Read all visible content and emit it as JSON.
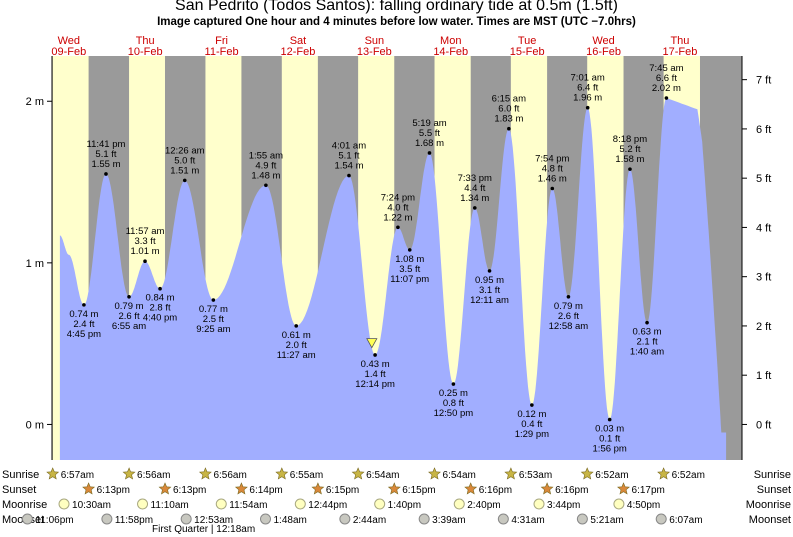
{
  "header": {
    "title": "San Pedrito (Todos Santos): falling  ordinary tide at 0.5m (1.5ft)",
    "subtitle": "Image captured One hour and 4 minutes before low water. Times are MST (UTC −7.0hrs)"
  },
  "colors": {
    "night": "#9a9a9a",
    "day": "#ffffcc",
    "water": "#a1aeff",
    "day_label": "#cc0000",
    "current_marker": "#ffff55"
  },
  "chart_data": {
    "type": "area",
    "x_unit": "hours from 09-Feb 00:00 (MST)",
    "ylim_m": [
      -0.22,
      2.28
    ],
    "yticks_m": [
      {
        "v": 0,
        "label": "0 m"
      },
      {
        "v": 1,
        "label": "1 m"
      },
      {
        "v": 2,
        "label": "2 m"
      }
    ],
    "yticks_ft": [
      {
        "v": 0,
        "label": "0 ft"
      },
      {
        "v": 1,
        "label": "1 ft"
      },
      {
        "v": 2,
        "label": "2 ft"
      },
      {
        "v": 3,
        "label": "3 ft"
      },
      {
        "v": 4,
        "label": "4 ft"
      },
      {
        "v": 5,
        "label": "5 ft"
      },
      {
        "v": 6,
        "label": "6 ft"
      },
      {
        "v": 7,
        "label": "7 ft"
      }
    ],
    "days": [
      {
        "name": "Wed",
        "date": "09-Feb"
      },
      {
        "name": "Thu",
        "date": "10-Feb"
      },
      {
        "name": "Fri",
        "date": "11-Feb"
      },
      {
        "name": "Sat",
        "date": "12-Feb"
      },
      {
        "name": "Sun",
        "date": "13-Feb"
      },
      {
        "name": "Mon",
        "date": "14-Feb"
      },
      {
        "name": "Tue",
        "date": "15-Feb"
      },
      {
        "name": "Wed",
        "date": "16-Feb"
      },
      {
        "name": "Thu",
        "date": "17-Feb"
      }
    ],
    "daylight_hours": [
      [
        6.95,
        18.22
      ],
      [
        30.93,
        42.22
      ],
      [
        54.93,
        66.23
      ],
      [
        78.92,
        90.25
      ],
      [
        102.9,
        114.25
      ],
      [
        126.9,
        138.27
      ],
      [
        150.88,
        162.27
      ],
      [
        174.87,
        186.28
      ],
      [
        198.87,
        210.3
      ]
    ],
    "tide_series_start": [
      [
        9.2,
        1.17
      ],
      [
        12.0,
        1.05
      ]
    ],
    "tide_series_end": [
      [
        209.5,
        1.95
      ],
      [
        211.0,
        1.75
      ],
      [
        213.0,
        1.2
      ],
      [
        215.5,
        0.45
      ],
      [
        217.0,
        -0.05
      ],
      [
        218.5,
        -0.05
      ]
    ],
    "extremes": [
      {
        "x": 16.75,
        "h": 0.74,
        "type": "low",
        "m": "0.74 m",
        "ft": "2.4 ft",
        "time": "4:45 pm"
      },
      {
        "x": 23.68,
        "h": 1.55,
        "type": "high",
        "m": "1.55 m",
        "ft": "5.1 ft",
        "time": "11:41 pm"
      },
      {
        "x": 30.92,
        "h": 0.79,
        "type": "low",
        "m": "0.79 m",
        "ft": "2.6 ft",
        "time": "6:55 am"
      },
      {
        "x": 35.95,
        "h": 1.01,
        "type": "high",
        "m": "1.01 m",
        "ft": "3.3 ft",
        "time": "11:57 am"
      },
      {
        "x": 40.67,
        "h": 0.84,
        "type": "low",
        "m": "0.84 m",
        "ft": "2.8 ft",
        "time": "4:40 pm"
      },
      {
        "x": 48.43,
        "h": 1.51,
        "type": "high",
        "m": "1.51 m",
        "ft": "5.0 ft",
        "time": "12:26 am"
      },
      {
        "x": 57.42,
        "h": 0.77,
        "type": "low",
        "m": "0.77 m",
        "ft": "2.5 ft",
        "time": "9:25 am"
      },
      {
        "x": 73.92,
        "h": 1.48,
        "type": "high",
        "m": "1.48 m",
        "ft": "4.9 ft",
        "time": "1:55 am"
      },
      {
        "x": 83.45,
        "h": 0.61,
        "type": "low",
        "m": "0.61 m",
        "ft": "2.0 ft",
        "time": "11:27 am"
      },
      {
        "x": 100.02,
        "h": 1.54,
        "type": "high",
        "m": "1.54 m",
        "ft": "5.1 ft",
        "time": "4:01 am"
      },
      {
        "x": 108.23,
        "h": 0.43,
        "type": "low",
        "m": "0.43 m",
        "ft": "1.4 ft",
        "time": "12:14 pm"
      },
      {
        "x": 115.4,
        "h": 1.22,
        "type": "high",
        "m": "1.22 m",
        "ft": "4.0 ft",
        "time": "7:24 pm"
      },
      {
        "x": 119.12,
        "h": 1.08,
        "type": "low",
        "m": "1.08 m",
        "ft": "3.5 ft",
        "time": "11:07 pm"
      },
      {
        "x": 125.32,
        "h": 1.68,
        "type": "high",
        "m": "1.68 m",
        "ft": "5.5 ft",
        "time": "5:19 am"
      },
      {
        "x": 132.83,
        "h": 0.25,
        "type": "low",
        "m": "0.25 m",
        "ft": "0.8 ft",
        "time": "12:50 pm"
      },
      {
        "x": 139.55,
        "h": 1.34,
        "type": "high",
        "m": "1.34 m",
        "ft": "4.4 ft",
        "time": "7:33 pm"
      },
      {
        "x": 144.18,
        "h": 0.95,
        "type": "low",
        "m": "0.95 m",
        "ft": "3.1 ft",
        "time": "12:11 am"
      },
      {
        "x": 150.25,
        "h": 1.83,
        "type": "high",
        "m": "1.83 m",
        "ft": "6.0 ft",
        "time": "6:15 am"
      },
      {
        "x": 157.48,
        "h": 0.12,
        "type": "low",
        "m": "0.12 m",
        "ft": "0.4 ft",
        "time": "1:29 pm"
      },
      {
        "x": 163.9,
        "h": 1.46,
        "type": "high",
        "m": "1.46 m",
        "ft": "4.8 ft",
        "time": "7:54 pm"
      },
      {
        "x": 168.97,
        "h": 0.79,
        "type": "low",
        "m": "0.79 m",
        "ft": "2.6 ft",
        "time": "12:58 am"
      },
      {
        "x": 175.02,
        "h": 1.96,
        "type": "high",
        "m": "1.96 m",
        "ft": "6.4 ft",
        "time": "7:01 am"
      },
      {
        "x": 181.93,
        "h": 0.03,
        "type": "low",
        "m": "0.03 m",
        "ft": "0.1 ft",
        "time": "1:56 pm"
      },
      {
        "x": 188.3,
        "h": 1.58,
        "type": "high",
        "m": "1.58 m",
        "ft": "5.2 ft",
        "time": "8:18 pm"
      },
      {
        "x": 193.67,
        "h": 0.63,
        "type": "low",
        "m": "0.63 m",
        "ft": "2.1 ft",
        "time": "1:40 am"
      },
      {
        "x": 199.75,
        "h": 2.02,
        "type": "high",
        "m": "2.02 m",
        "ft": "6.6 ft",
        "time": "7:45 am"
      }
    ],
    "current_marker": {
      "x": 107.2,
      "h": 0.5
    }
  },
  "astro": {
    "row_labels": [
      "Sunrise",
      "Sunset",
      "Moonrise",
      "Moonset"
    ],
    "sunrise": [
      {
        "x": 6.95,
        "t": "6:57am"
      },
      {
        "x": 30.93,
        "t": "6:56am"
      },
      {
        "x": 54.93,
        "t": "6:56am"
      },
      {
        "x": 78.92,
        "t": "6:55am"
      },
      {
        "x": 102.9,
        "t": "6:54am"
      },
      {
        "x": 126.9,
        "t": "6:54am"
      },
      {
        "x": 150.88,
        "t": "6:53am"
      },
      {
        "x": 174.87,
        "t": "6:52am"
      },
      {
        "x": 198.87,
        "t": "6:52am"
      }
    ],
    "sunset": [
      {
        "x": 18.22,
        "t": "6:13pm"
      },
      {
        "x": 42.22,
        "t": "6:13pm"
      },
      {
        "x": 66.23,
        "t": "6:14pm"
      },
      {
        "x": 90.25,
        "t": "6:15pm"
      },
      {
        "x": 114.25,
        "t": "6:15pm"
      },
      {
        "x": 138.27,
        "t": "6:16pm"
      },
      {
        "x": 162.27,
        "t": "6:16pm"
      },
      {
        "x": 186.28,
        "t": "6:17pm"
      }
    ],
    "moonrise": [
      {
        "x": 10.5,
        "t": "10:30am"
      },
      {
        "x": 35.17,
        "t": "11:10am"
      },
      {
        "x": 59.9,
        "t": "11:54am"
      },
      {
        "x": 84.73,
        "t": "12:44pm"
      },
      {
        "x": 109.67,
        "t": "1:40pm"
      },
      {
        "x": 134.67,
        "t": "2:40pm"
      },
      {
        "x": 159.73,
        "t": "3:44pm"
      },
      {
        "x": 184.83,
        "t": "4:50pm"
      }
    ],
    "moonset": [
      {
        "x": -1.0,
        "t": "11:06pm"
      },
      {
        "x": 23.97,
        "t": "11:58pm"
      },
      {
        "x": 48.88,
        "t": "12:53am"
      },
      {
        "x": 73.8,
        "t": "1:48am"
      },
      {
        "x": 98.73,
        "t": "2:44am"
      },
      {
        "x": 123.65,
        "t": "3:39am"
      },
      {
        "x": 148.52,
        "t": "4:31am"
      },
      {
        "x": 173.35,
        "t": "5:21am"
      },
      {
        "x": 198.12,
        "t": "6:07am"
      }
    ],
    "moon_phase_note": "First Quarter | 12:18am"
  }
}
